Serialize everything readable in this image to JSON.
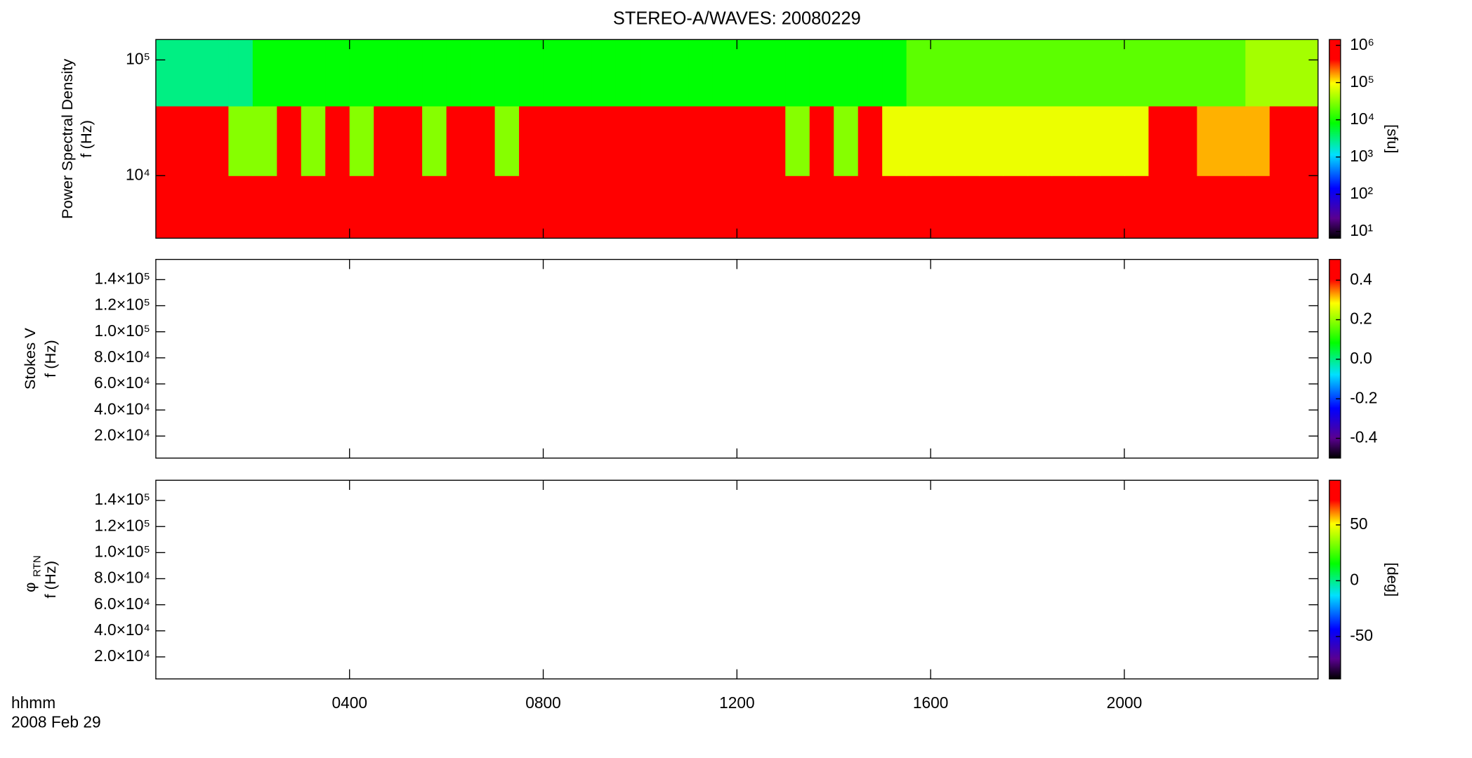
{
  "chart_data": [
    {
      "type": "heatmap",
      "title": "STEREO-A/WAVES: 20080229",
      "ylabel": [
        "Power Spectral Density",
        "f (Hz)"
      ],
      "xlim": [
        0,
        24
      ],
      "ylim": [
        2880,
        150000
      ],
      "ylog": true,
      "yticks": [
        {
          "value": 10000,
          "label": "10⁴"
        },
        {
          "value": 100000,
          "label": "10⁵"
        }
      ],
      "xbins": [
        0,
        0.5,
        1,
        1.5,
        2,
        2.5,
        3,
        3.5,
        4,
        4.5,
        5,
        5.5,
        6,
        6.5,
        7,
        7.5,
        8,
        8.5,
        9,
        9.5,
        10,
        10.5,
        11,
        11.5,
        12,
        12.5,
        13,
        13.5,
        14,
        14.5,
        15,
        15.5,
        16,
        16.5,
        17,
        17.5,
        18,
        18.5,
        19,
        19.5,
        20,
        20.5,
        21,
        21.5,
        22,
        22.5,
        23,
        23.5,
        24
      ],
      "ybins": [
        2880,
        10000,
        40000,
        150000
      ],
      "z": [
        [
          1000000,
          1000000,
          1000000,
          500000,
          500000,
          1000000,
          500000,
          1000000,
          500000,
          1000000,
          1000000,
          500000,
          1000000,
          1000000,
          500000,
          1000000,
          1000000,
          1000000,
          1000000,
          1000000,
          1000000,
          1000000,
          1000000,
          1000000,
          1000000,
          1000000,
          500000,
          1000000,
          500000,
          1000000,
          500000,
          500000,
          500000,
          500000,
          500000,
          500000,
          500000,
          500000,
          500000,
          500000,
          500000,
          1000000,
          1000000,
          500000,
          500000,
          500000,
          1000000,
          1000000
        ],
        [
          1000000,
          1000000,
          1000000,
          30000,
          30000,
          1000000,
          30000,
          1000000,
          30000,
          1000000,
          1000000,
          30000,
          1000000,
          1000000,
          30000,
          1000000,
          1000000,
          1000000,
          1000000,
          1000000,
          1000000,
          1000000,
          1000000,
          1000000,
          1000000,
          1000000,
          30000,
          1000000,
          30000,
          1000000,
          80000,
          80000,
          80000,
          80000,
          80000,
          80000,
          80000,
          80000,
          80000,
          80000,
          80000,
          1000000,
          1000000,
          150000,
          150000,
          150000,
          1000000,
          1000000
        ],
        [
          3000,
          3000,
          3000,
          3000,
          8000,
          8000,
          8000,
          8000,
          8000,
          8000,
          8000,
          8000,
          8000,
          8000,
          8000,
          8000,
          8000,
          8000,
          8000,
          8000,
          8000,
          8000,
          8000,
          8000,
          8000,
          8000,
          8000,
          8000,
          8000,
          8000,
          8000,
          20000,
          20000,
          20000,
          20000,
          20000,
          20000,
          20000,
          20000,
          20000,
          20000,
          20000,
          20000,
          20000,
          20000,
          40000,
          40000,
          40000
        ]
      ],
      "colormap": "rainbow",
      "colorbar": {
        "lim": [
          6.6,
          1430000
        ],
        "log": true,
        "label": "[sfu]",
        "ticks": [
          {
            "value": 10,
            "label": "10¹"
          },
          {
            "value": 100,
            "label": "10²"
          },
          {
            "value": 1000,
            "label": "10³"
          },
          {
            "value": 10000,
            "label": "10⁴"
          },
          {
            "value": 100000,
            "label": "10⁵"
          },
          {
            "value": 1000000,
            "label": "10⁶"
          }
        ]
      }
    },
    {
      "type": "heatmap",
      "ylabel": [
        "Stokes V",
        "f (Hz)"
      ],
      "xlim": [
        0,
        24
      ],
      "ylim": [
        3100,
        155500
      ],
      "ylog": false,
      "yticks": [
        {
          "value": 20000,
          "label": "2.0×10⁴"
        },
        {
          "value": 40000,
          "label": "4.0×10⁴"
        },
        {
          "value": 60000,
          "label": "6.0×10⁴"
        },
        {
          "value": 80000,
          "label": "8.0×10⁴"
        },
        {
          "value": 100000,
          "label": "1.0×10⁵"
        },
        {
          "value": 120000,
          "label": "1.2×10⁵"
        },
        {
          "value": 140000,
          "label": "1.4×10⁵"
        }
      ],
      "colormap": "rainbow",
      "colorbar": {
        "lim": [
          -0.5,
          0.505
        ],
        "log": false,
        "ticks": [
          {
            "value": -0.4,
            "label": "-0.4"
          },
          {
            "value": -0.2,
            "label": "-0.2"
          },
          {
            "value": 0,
            "label": "0.0"
          },
          {
            "value": 0.2,
            "label": "0.2"
          },
          {
            "value": 0.4,
            "label": "0.4"
          }
        ]
      }
    },
    {
      "type": "heatmap",
      "ylabel": [
        "φ",
        "RTN",
        "f (Hz)"
      ],
      "xlim": [
        0,
        24
      ],
      "ylim": [
        3100,
        155500
      ],
      "ylog": false,
      "yticks": [
        {
          "value": 20000,
          "label": "2.0×10⁴"
        },
        {
          "value": 40000,
          "label": "4.0×10⁴"
        },
        {
          "value": 60000,
          "label": "6.0×10⁴"
        },
        {
          "value": 80000,
          "label": "8.0×10⁴"
        },
        {
          "value": 100000,
          "label": "1.0×10⁵"
        },
        {
          "value": 120000,
          "label": "1.2×10⁵"
        },
        {
          "value": 140000,
          "label": "1.4×10⁵"
        }
      ],
      "xticks": [
        {
          "value": 4,
          "label": "0400"
        },
        {
          "value": 8,
          "label": "0800"
        },
        {
          "value": 12,
          "label": "1200"
        },
        {
          "value": 16,
          "label": "1600"
        },
        {
          "value": 20,
          "label": "2000"
        }
      ],
      "xlabel": "hhmm",
      "date_label": "2008 Feb 29",
      "colormap": "rainbow",
      "colorbar": {
        "lim": [
          -88,
          90
        ],
        "log": false,
        "label": "[deg]",
        "ticks": [
          -50,
          0,
          50
        ]
      }
    }
  ]
}
